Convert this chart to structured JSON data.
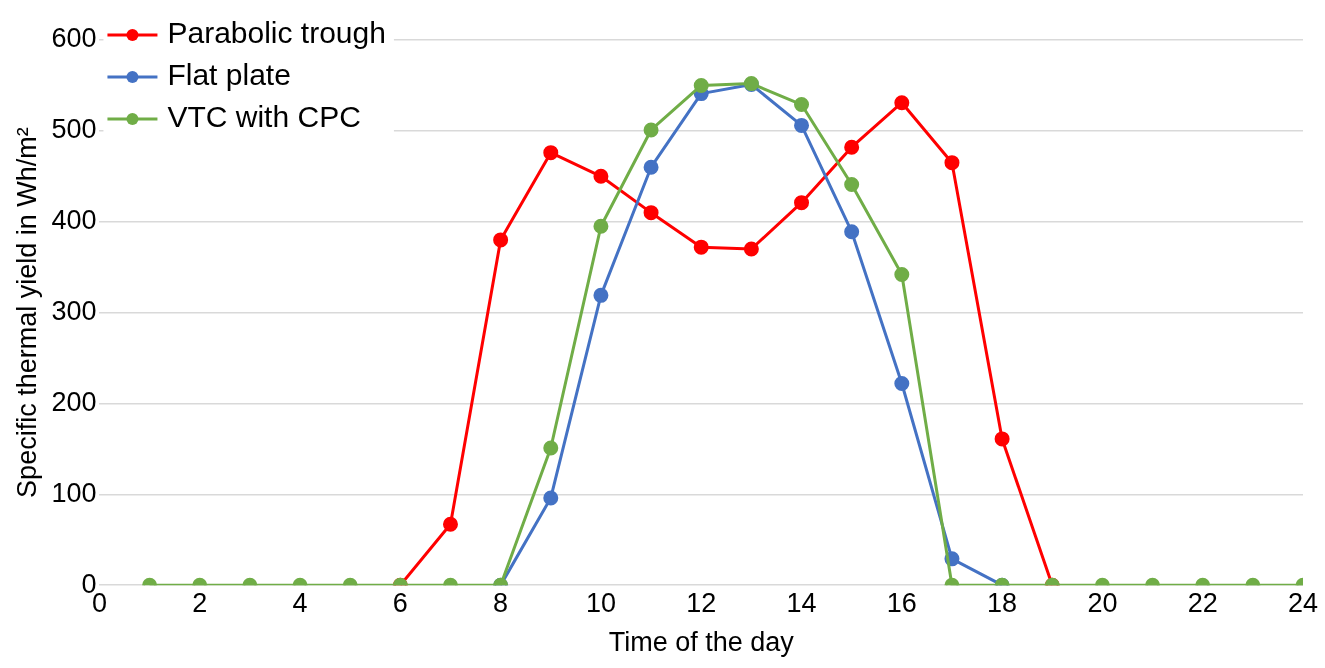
{
  "chart_data": {
    "type": "line",
    "xlabel": "Time of the day",
    "ylabel": "Specific thermal yield in Wh/m²",
    "x": [
      1,
      2,
      3,
      4,
      5,
      6,
      7,
      8,
      9,
      10,
      11,
      12,
      13,
      14,
      15,
      16,
      17,
      18,
      19,
      20,
      21,
      22,
      23,
      24
    ],
    "series": [
      {
        "name": "Parabolic trough",
        "color": "#ff0000",
        "values": [
          null,
          null,
          null,
          null,
          null,
          0,
          67,
          380,
          476,
          450,
          410,
          372,
          370,
          421,
          482,
          531,
          465,
          161,
          0,
          null,
          null,
          null,
          null,
          null
        ]
      },
      {
        "name": "Flat plate",
        "color": "#4472c4",
        "values": [
          null,
          null,
          null,
          null,
          null,
          null,
          null,
          0,
          96,
          319,
          460,
          541,
          551,
          506,
          389,
          222,
          29,
          0,
          null,
          null,
          null,
          null,
          null,
          null
        ]
      },
      {
        "name": "VTC with CPC",
        "color": "#70ad47",
        "values": [
          0,
          0,
          0,
          0,
          0,
          0,
          0,
          0,
          151,
          395,
          501,
          550,
          552,
          529,
          441,
          342,
          0,
          0,
          0,
          0,
          0,
          0,
          0,
          0
        ]
      }
    ],
    "xlim": [
      0,
      24
    ],
    "xticks": [
      0,
      2,
      4,
      6,
      8,
      10,
      12,
      14,
      16,
      18,
      20,
      22,
      24
    ],
    "ylim": [
      0,
      600
    ],
    "yticks": [
      0,
      100,
      200,
      300,
      400,
      500,
      600
    ],
    "grid": "y",
    "legend": "top left",
    "marker": "circle",
    "line_style": "solid"
  }
}
